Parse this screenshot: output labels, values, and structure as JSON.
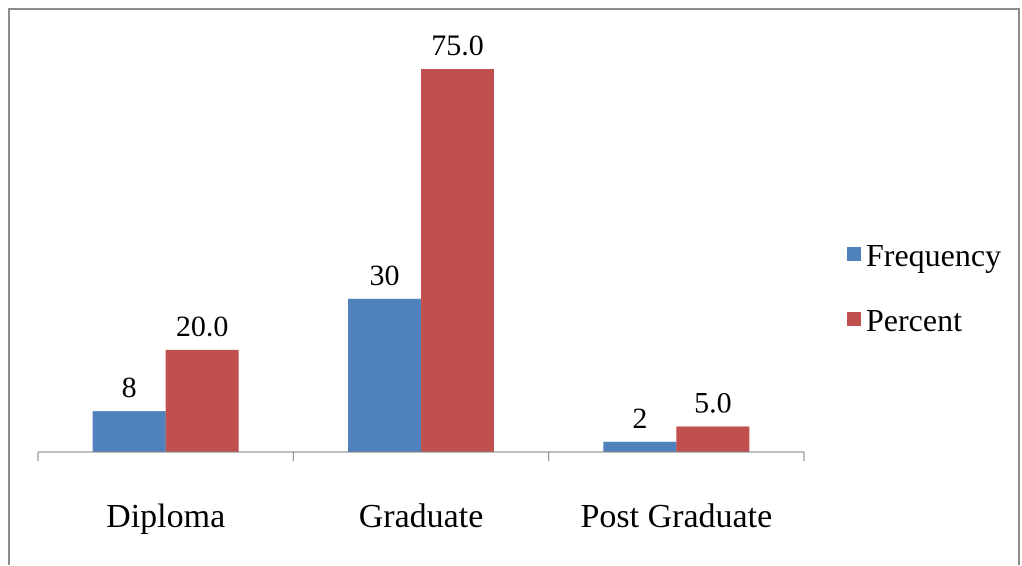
{
  "chart_data": {
    "type": "bar",
    "categories": [
      "Diploma",
      "Graduate",
      "Post Graduate"
    ],
    "series": [
      {
        "name": "Frequency",
        "values": [
          8,
          30,
          2
        ],
        "labels": [
          "8",
          "30",
          "2"
        ],
        "color": "#4f81bd"
      },
      {
        "name": "Percent",
        "values": [
          20.0,
          75.0,
          5.0
        ],
        "labels": [
          "20.0",
          "75.0",
          "5.0"
        ],
        "color": "#c0504d"
      }
    ],
    "ylim": [
      0,
      85
    ],
    "legend_position": "right",
    "grid": false
  }
}
